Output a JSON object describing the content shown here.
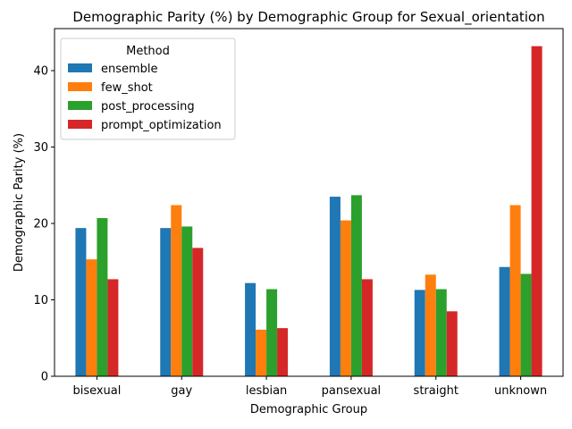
{
  "chart_data": {
    "type": "bar",
    "title": "Demographic Parity (%) by Demographic Group for Sexual_orientation",
    "xlabel": "Demographic Group",
    "ylabel": "Demographic Parity (%)",
    "ylim": [
      0,
      45.5
    ],
    "yticks": [
      0,
      10,
      20,
      30,
      40
    ],
    "grid": false,
    "categories": [
      "bisexual",
      "gay",
      "lesbian",
      "pansexual",
      "straight",
      "unknown"
    ],
    "legend": {
      "title": "Method",
      "placement": "top-left"
    },
    "series": [
      {
        "name": "ensemble",
        "color": "#1f77b4",
        "values": [
          19.4,
          19.4,
          12.2,
          23.5,
          11.3,
          14.3
        ]
      },
      {
        "name": "few_shot",
        "color": "#ff7f0e",
        "values": [
          15.3,
          22.4,
          6.1,
          20.4,
          13.3,
          22.4
        ]
      },
      {
        "name": "post_processing",
        "color": "#2ca02c",
        "values": [
          20.7,
          19.6,
          11.4,
          23.7,
          11.4,
          13.4
        ]
      },
      {
        "name": "prompt_optimization",
        "color": "#d62728",
        "values": [
          12.7,
          16.8,
          6.3,
          12.7,
          8.5,
          43.2
        ]
      }
    ]
  }
}
